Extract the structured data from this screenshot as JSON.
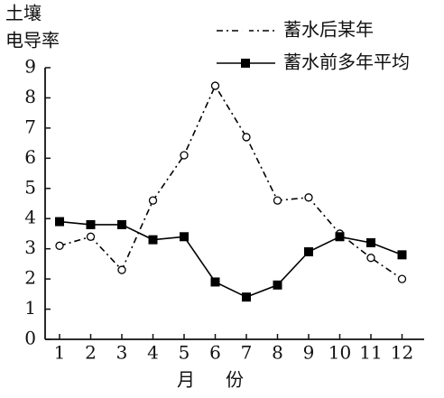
{
  "chart_data": {
    "type": "line",
    "y_label": [
      "土壤",
      "电导率"
    ],
    "x_label": "月份",
    "categories": [
      "1",
      "2",
      "3",
      "4",
      "5",
      "6",
      "7",
      "8",
      "9",
      "10",
      "11",
      "12"
    ],
    "series": [
      {
        "name": "蓄水后某年",
        "color": "#000000",
        "marker": "open-circle",
        "dash": "dash-dot",
        "values": [
          3.1,
          3.4,
          2.3,
          4.6,
          6.1,
          8.4,
          6.7,
          4.6,
          4.7,
          3.5,
          2.7,
          2.0
        ]
      },
      {
        "name": "蓄水前多年平均",
        "color": "#000000",
        "marker": "filled-square",
        "dash": "solid",
        "values": [
          3.9,
          3.8,
          3.8,
          3.3,
          3.4,
          1.9,
          1.4,
          1.8,
          2.9,
          3.4,
          3.2,
          2.8
        ]
      }
    ],
    "ylim": [
      0,
      9
    ],
    "yticks": [
      0,
      1,
      2,
      3,
      4,
      5,
      6,
      7,
      8,
      9
    ],
    "legend": "top-right"
  }
}
